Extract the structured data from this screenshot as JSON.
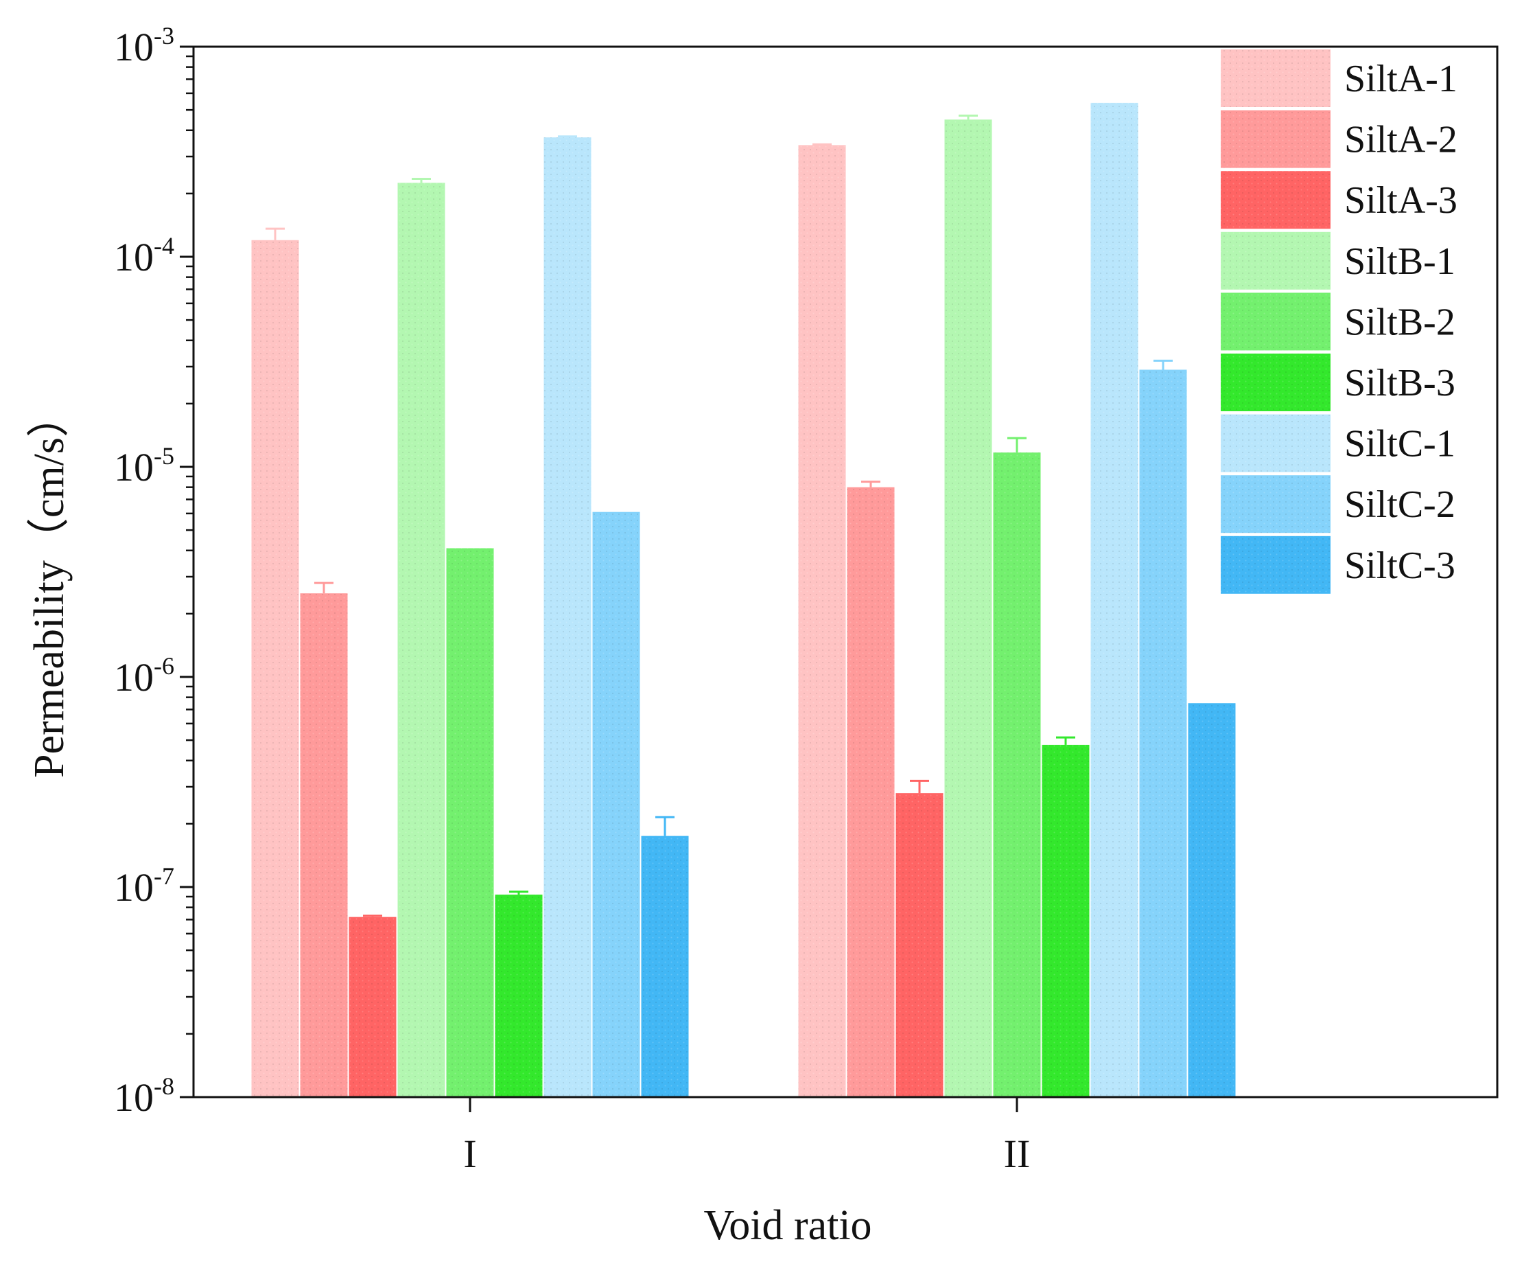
{
  "chart_data": {
    "type": "bar",
    "title": "",
    "xlabel": "Void ratio",
    "ylabel": "Permeability（cm/s）",
    "yscale": "log",
    "ylim": [
      1e-08,
      0.001
    ],
    "y_ticks": [
      {
        "base": "10",
        "exp": "-8"
      },
      {
        "base": "10",
        "exp": "-7"
      },
      {
        "base": "10",
        "exp": "-6"
      },
      {
        "base": "10",
        "exp": "-5"
      },
      {
        "base": "10",
        "exp": "-4"
      },
      {
        "base": "10",
        "exp": "-3"
      }
    ],
    "categories": [
      "I",
      "II"
    ],
    "legend_position": "top-right",
    "series": [
      {
        "name": "SiltA-1",
        "color": "#ffc3c3",
        "values": [
          0.00012,
          0.00034
        ],
        "errors": [
          1.6e-05,
          3e-06
        ]
      },
      {
        "name": "SiltA-2",
        "color": "#ff9a9a",
        "values": [
          2.5e-06,
          8e-06
        ],
        "errors": [
          3e-07,
          5e-07
        ]
      },
      {
        "name": "SiltA-3",
        "color": "#ff6464",
        "values": [
          7.2e-08,
          2.8e-07
        ],
        "errors": [
          1e-09,
          4e-08
        ]
      },
      {
        "name": "SiltB-1",
        "color": "#b3f7b1",
        "values": [
          0.000225,
          0.00045
        ],
        "errors": [
          1e-05,
          2e-05
        ]
      },
      {
        "name": "SiltB-2",
        "color": "#73f06e",
        "values": [
          4.1e-06,
          1.17e-05
        ],
        "errors": [
          0,
          2e-06
        ]
      },
      {
        "name": "SiltB-3",
        "color": "#33e82c",
        "values": [
          9.2e-08,
          4.75e-07
        ],
        "errors": [
          3e-09,
          4e-08
        ]
      },
      {
        "name": "SiltC-1",
        "color": "#b9e6fc",
        "values": [
          0.00037,
          0.00054
        ],
        "errors": [
          4e-06,
          0
        ]
      },
      {
        "name": "SiltC-2",
        "color": "#85d3fb",
        "values": [
          6.1e-06,
          2.9e-05
        ],
        "errors": [
          0,
          3e-06
        ]
      },
      {
        "name": "SiltC-3",
        "color": "#42b7f5",
        "values": [
          1.75e-07,
          7.5e-07
        ],
        "errors": [
          4e-08,
          0
        ]
      }
    ]
  }
}
